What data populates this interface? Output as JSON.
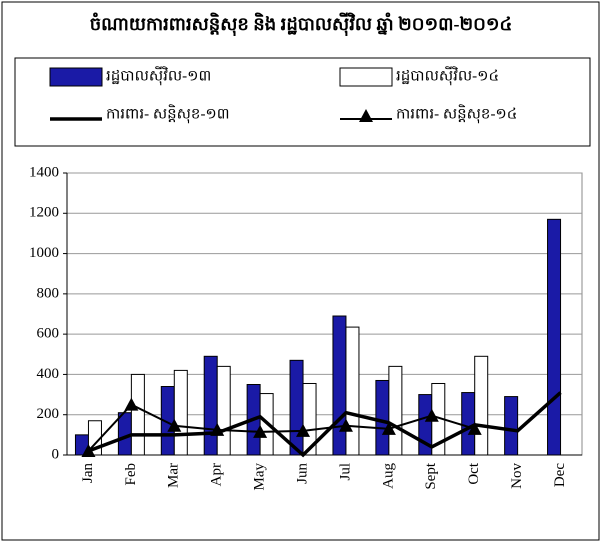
{
  "chart_data": {
    "type": "bar",
    "title": "ចំណាយការពារសន្តិសុខ និង រដ្ឋបាលស៊ីវិល ឆ្នាំ ២០១៣-២០១៤",
    "categories": [
      "Jan",
      "Feb",
      "Mar",
      "Apr",
      "May",
      "Jun",
      "Jul",
      "Aug",
      "Sept",
      "Oct",
      "Nov",
      "Dec"
    ],
    "series": [
      {
        "name": "រដ្ឋបាលស៊ីវិល-១៣",
        "type": "bar",
        "color": "#1a1aa6",
        "values": [
          100,
          210,
          340,
          490,
          350,
          470,
          690,
          370,
          300,
          310,
          290,
          1170
        ]
      },
      {
        "name": "រដ្ឋបាលស៊ីវិល-១៤",
        "type": "bar",
        "color": "#ffffff",
        "values": [
          170,
          400,
          420,
          440,
          305,
          355,
          635,
          440,
          355,
          490,
          null,
          null
        ]
      },
      {
        "name": "ការពារ- សន្តិសុខ-១៣",
        "type": "line",
        "color": "#000000",
        "values": [
          20,
          100,
          100,
          110,
          190,
          0,
          210,
          160,
          40,
          150,
          120,
          310
        ]
      },
      {
        "name": "ការពារ- សន្តិសុខ-១៤",
        "type": "line",
        "color": "#000000",
        "marker": "triangle",
        "values": [
          20,
          250,
          145,
          125,
          115,
          120,
          145,
          130,
          195,
          130,
          null,
          null
        ]
      }
    ],
    "ylim": [
      0,
      1400
    ],
    "yticks": [
      0,
      200,
      400,
      600,
      800,
      1000,
      1200,
      1400
    ],
    "grid": true
  }
}
